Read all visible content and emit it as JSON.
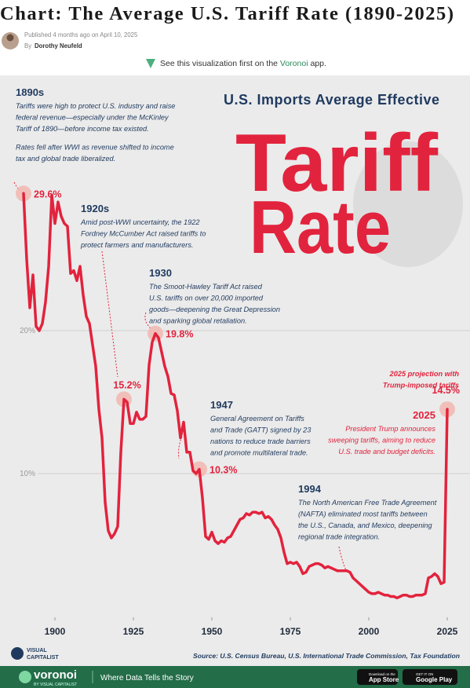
{
  "header": {
    "title": "Chart: The Average U.S. Tariff Rate (1890-2025)",
    "published": "Published 4 months ago on April 10, 2025",
    "by": "By",
    "author": "Dorothy Neufeld"
  },
  "promo": {
    "text": "See this visualization first on the",
    "link": "Voronoi",
    "suffix": "app."
  },
  "chart_data": {
    "type": "line",
    "subtitle": "U.S. Imports Average Effective",
    "title": [
      "Tariff",
      "Rate"
    ],
    "x": [
      1890,
      1891,
      1892,
      1893,
      1894,
      1895,
      1896,
      1897,
      1898,
      1899,
      1900,
      1901,
      1902,
      1903,
      1904,
      1905,
      1906,
      1907,
      1908,
      1909,
      1910,
      1911,
      1912,
      1913,
      1914,
      1915,
      1916,
      1917,
      1918,
      1919,
      1920,
      1921,
      1922,
      1923,
      1924,
      1925,
      1926,
      1927,
      1928,
      1929,
      1930,
      1931,
      1932,
      1933,
      1934,
      1935,
      1936,
      1937,
      1938,
      1939,
      1940,
      1941,
      1942,
      1943,
      1944,
      1945,
      1946,
      1947,
      1948,
      1949,
      1950,
      1951,
      1952,
      1953,
      1954,
      1955,
      1956,
      1957,
      1958,
      1959,
      1960,
      1961,
      1962,
      1963,
      1964,
      1965,
      1966,
      1967,
      1968,
      1969,
      1970,
      1971,
      1972,
      1973,
      1974,
      1975,
      1976,
      1977,
      1978,
      1979,
      1980,
      1981,
      1982,
      1983,
      1984,
      1985,
      1986,
      1987,
      1988,
      1989,
      1990,
      1991,
      1992,
      1993,
      1994,
      1995,
      1996,
      1997,
      1998,
      1999,
      2000,
      2001,
      2002,
      2003,
      2004,
      2005,
      2006,
      2007,
      2008,
      2009,
      2010,
      2011,
      2012,
      2013,
      2014,
      2015,
      2016,
      2017,
      2018,
      2019,
      2020,
      2021,
      2022,
      2023,
      2024,
      2025
    ],
    "series": [
      {
        "name": "Average effective tariff rate",
        "color": "#e2233d",
        "values": [
          29.6,
          25.0,
          21.6,
          23.9,
          20.3,
          20.0,
          20.5,
          22.0,
          24.5,
          29.5,
          27.5,
          29.0,
          28.0,
          27.5,
          27.3,
          24.0,
          24.2,
          23.5,
          24.5,
          22.5,
          21.0,
          20.5,
          19.0,
          17.5,
          14.5,
          12.5,
          8.0,
          6.0,
          5.5,
          5.8,
          6.3,
          11.5,
          15.2,
          15.0,
          13.5,
          13.5,
          14.3,
          13.8,
          13.8,
          14.0,
          17.6,
          19.2,
          19.8,
          19.5,
          18.5,
          17.5,
          16.8,
          15.6,
          15.5,
          14.4,
          12.5,
          13.6,
          11.5,
          11.5,
          10.2,
          10.0,
          10.3,
          8.3,
          5.6,
          5.4,
          5.9,
          5.3,
          5.1,
          5.3,
          5.2,
          5.5,
          5.6,
          6.0,
          6.4,
          6.8,
          6.9,
          7.2,
          7.1,
          7.3,
          7.3,
          7.2,
          7.3,
          6.9,
          7.0,
          6.8,
          6.4,
          6.1,
          5.5,
          4.5,
          3.7,
          3.8,
          3.7,
          3.8,
          3.5,
          3.0,
          3.1,
          3.5,
          3.6,
          3.7,
          3.7,
          3.6,
          3.4,
          3.5,
          3.4,
          3.3,
          3.2,
          3.2,
          3.2,
          3.2,
          3.1,
          2.7,
          2.5,
          2.3,
          2.1,
          1.9,
          1.7,
          1.6,
          1.6,
          1.7,
          1.6,
          1.5,
          1.5,
          1.4,
          1.4,
          1.3,
          1.4,
          1.5,
          1.5,
          1.4,
          1.4,
          1.5,
          1.5,
          1.5,
          1.6,
          2.7,
          2.8,
          3.0,
          2.8,
          2.3,
          2.4,
          14.5
        ],
        "value_labels": [
          "29.6%",
          null,
          null,
          null,
          null,
          null,
          null,
          null,
          null,
          null,
          null,
          null,
          null,
          null,
          null,
          null,
          null,
          null,
          null,
          null,
          null,
          null,
          null,
          null,
          null,
          null,
          null,
          null,
          null,
          null,
          null,
          null,
          "15.2%",
          null,
          null,
          null,
          null,
          null,
          null,
          null,
          null,
          null,
          "19.8%",
          null,
          null,
          null,
          null,
          null,
          null,
          null,
          null,
          null,
          null,
          null,
          null,
          null,
          "10.3%",
          null,
          null,
          null,
          null,
          null,
          null,
          null,
          null,
          null,
          null,
          null,
          null,
          null,
          null,
          null,
          null,
          null,
          null,
          null,
          null,
          null,
          null,
          null,
          null,
          null,
          null,
          null,
          null,
          null,
          null,
          null,
          null,
          null,
          null,
          null,
          null,
          null,
          null,
          null,
          null,
          null,
          null,
          null,
          null,
          null,
          null,
          null,
          null,
          null,
          null,
          null,
          null,
          null,
          null,
          null,
          null,
          null,
          null,
          null,
          null,
          null,
          null,
          null,
          null,
          null,
          null,
          null,
          null,
          null,
          null,
          null,
          null,
          null,
          null,
          null,
          null,
          null,
          null,
          "14.5%"
        ]
      }
    ],
    "xlim": [
      1890,
      2025
    ],
    "xticks": [
      1900,
      1925,
      1950,
      1975,
      2000,
      2025
    ],
    "ylim": [
      0,
      30
    ],
    "yticks": [
      {
        "value": 10,
        "label": "10%"
      },
      {
        "value": 20,
        "label": "20%"
      }
    ],
    "grid": true,
    "annotations": [
      {
        "title": "1890s",
        "paragraphs": [
          [
            "Tariffs were high to protect U.S. industry and raise",
            "federal revenue—especially under the McKinley",
            "Tariff of 1890—before income tax existed."
          ],
          [
            "Rates fell after WWI as revenue shifted to income",
            "tax and global trade liberalized."
          ]
        ]
      },
      {
        "title": "1920s",
        "paragraphs": [
          [
            "Amid post-WWI uncertainty, the 1922",
            "Fordney McCumber Act raised tariffs to",
            "protect farmers and manufacturers."
          ]
        ]
      },
      {
        "title": "1930",
        "paragraphs": [
          [
            "The Smoot-Hawley Tariff Act raised",
            "U.S. tariffs on over 20,000 imported",
            "goods—deepening the Great Depression",
            "and sparking global retaliation."
          ]
        ]
      },
      {
        "title": "1947",
        "paragraphs": [
          [
            "General Agreement on Tariffs",
            "and Trade (GATT) signed by 23",
            "nations to reduce trade barriers",
            "and promote multilateral trade."
          ]
        ]
      },
      {
        "title": "1994",
        "paragraphs": [
          [
            "The North American Free Trade Agreement",
            "(NAFTA) eliminated most tariffs between",
            "the U.S., Canada, and Mexico, deepening",
            "regional trade integration."
          ]
        ]
      },
      {
        "paragraphs": [
          [
            "2025 projection with",
            "Trump-imposed tariffs"
          ]
        ]
      },
      {
        "title": "2025",
        "paragraphs": [
          [
            "President Trump announces",
            "sweeping tariffs, aiming to reduce",
            "U.S. trade and budget deficits."
          ]
        ]
      }
    ],
    "source": "Source: U.S. Census Bureau, U.S. International Trade Commission, Tax Foundation"
  },
  "branding": {
    "logo": [
      "VISUAL",
      "CAPITALIST"
    ],
    "footer_brand": "voronoi",
    "footer_sub": "BY VISUAL CAPITALIST",
    "tagline": "Where Data Tells the Story",
    "app_store": [
      "Download on the",
      "App Store"
    ],
    "google_play": [
      "GET IT ON",
      "Google Play"
    ]
  }
}
